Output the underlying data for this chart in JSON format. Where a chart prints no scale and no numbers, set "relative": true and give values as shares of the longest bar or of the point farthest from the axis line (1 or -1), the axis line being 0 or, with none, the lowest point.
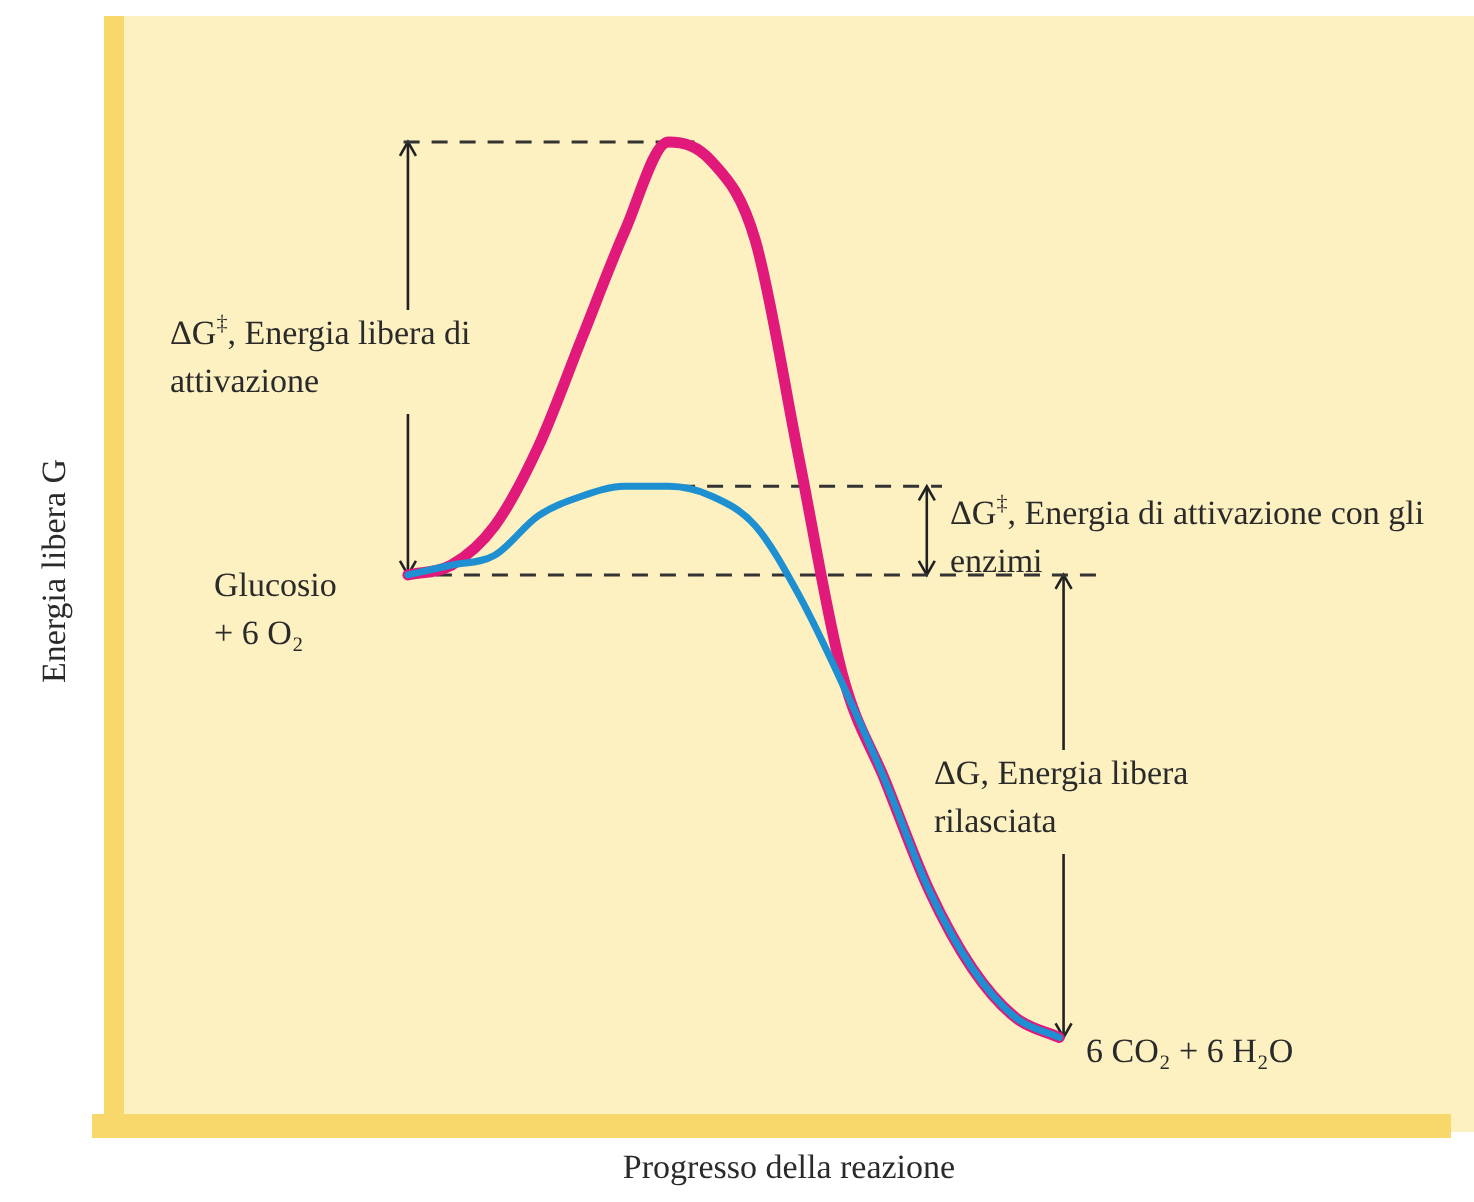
{
  "chart_data": {
    "type": "line",
    "relative": true,
    "xlabel": "Progresso della reazione",
    "ylabel": "Energia libera G",
    "categories": [
      null,
      null,
      null,
      null,
      null,
      null,
      null,
      null,
      null,
      null,
      null,
      null,
      null,
      null,
      null,
      null,
      null,
      null,
      null,
      null,
      null,
      null,
      null,
      null,
      null,
      null,
      null,
      null,
      null,
      null,
      null,
      null
    ],
    "series": [
      {
        "color": "#e0197b",
        "values": [
          null,
          null,
          null,
          null,
          null,
          null,
          null,
          0.56,
          0.57,
          0.61,
          0.69,
          0.8,
          0.91,
          1.0,
          0.98,
          0.9,
          0.68,
          0.46,
          0.35,
          0.24,
          0.16,
          0.11,
          0.09,
          null,
          null,
          null,
          null,
          null,
          null,
          null,
          null,
          null
        ]
      },
      {
        "color": "#1e8fd0",
        "values": [
          null,
          null,
          null,
          null,
          null,
          null,
          null,
          0.56,
          0.57,
          0.58,
          0.62,
          0.64,
          0.65,
          0.65,
          0.64,
          0.61,
          0.54,
          0.45,
          0.35,
          0.24,
          0.16,
          0.11,
          0.09,
          null,
          null,
          null,
          null,
          null,
          null,
          null,
          null,
          null
        ]
      }
    ],
    "ref_lines": [
      {
        "axis": "y",
        "value": 1.0,
        "line_style": "dashed",
        "color": "#333333"
      },
      {
        "axis": "y",
        "value": 0.65,
        "line_style": "dashed",
        "color": "#333333"
      },
      {
        "axis": "y",
        "value": 0.56,
        "line_style": "dashed",
        "color": "#333333"
      }
    ],
    "annotations": [
      "ΔG$^{‡}$, Energia libera di attivazione",
      "Glucosio + 6 O₂",
      "ΔG$^{‡}$, Energia di attivazione con gli enzimi",
      "ΔG, Energia libera rilasciata",
      "6 CO₂ + 6 H₂O"
    ],
    "legend": false,
    "marker": "none",
    "line_style": "solid"
  }
}
